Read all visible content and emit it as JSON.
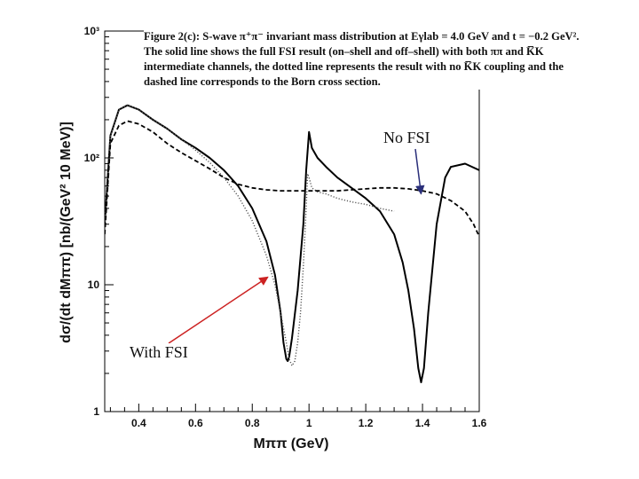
{
  "chart_data": {
    "type": "line",
    "caption": "Figure 2(c): S-wave π⁺π⁻ invariant mass distribution at Eγlab = 4.0 GeV and t = −0.2 GeV². The solid line shows the full FSI result (on–shell and off–shell) with both ππ and K̅K intermediate channels, the dotted line represents the result with no K̅K coupling and the dashed line corresponds to the Born cross section.",
    "xlabel": "Mππ (GeV)",
    "ylabel": "dσ/(dt dMππ) [nb/(GeV² 10 MeV)]",
    "xlim": [
      0.28,
      1.6
    ],
    "ylim": [
      1,
      1000
    ],
    "yscale": "log",
    "x_ticks": [
      "0.4",
      "0.6",
      "0.8",
      "1",
      "1.2",
      "1.4",
      "1.6"
    ],
    "y_ticks": [
      {
        "value": 1,
        "label": "1"
      },
      {
        "value": 10,
        "label": "10"
      },
      {
        "value": 100,
        "label": "10²"
      },
      {
        "value": 1000,
        "label": "10³"
      }
    ],
    "grid": false,
    "annotations": [
      {
        "id": "nofsi",
        "text": "No FSI",
        "arrow_color": "#2a2f7a",
        "points_to": {
          "x": 1.395,
          "y": 52
        }
      },
      {
        "id": "withfsi",
        "text": "With FSI",
        "arrow_color": "#cc2222",
        "points_to": {
          "x": 0.855,
          "y": 11.5
        }
      }
    ],
    "series": [
      {
        "style": "solid",
        "color": "#000000",
        "x": [
          0.28,
          0.3,
          0.33,
          0.36,
          0.4,
          0.45,
          0.5,
          0.55,
          0.6,
          0.65,
          0.7,
          0.75,
          0.8,
          0.85,
          0.88,
          0.9,
          0.91,
          0.92,
          0.925,
          0.93,
          0.94,
          0.96,
          0.98,
          0.99,
          1.0,
          1.01,
          1.03,
          1.06,
          1.1,
          1.15,
          1.2,
          1.25,
          1.3,
          1.33,
          1.35,
          1.37,
          1.385,
          1.395,
          1.405,
          1.42,
          1.45,
          1.48,
          1.5,
          1.55,
          1.6
        ],
        "y": [
          30,
          150,
          240,
          260,
          240,
          200,
          170,
          140,
          120,
          100,
          80,
          60,
          40,
          22,
          12,
          6,
          3.5,
          2.6,
          2.5,
          2.7,
          3.8,
          9,
          30,
          80,
          160,
          120,
          100,
          85,
          70,
          58,
          48,
          38,
          25,
          15,
          9,
          4.5,
          2.2,
          1.7,
          2.2,
          6,
          30,
          70,
          85,
          90,
          80
        ]
      },
      {
        "style": "dotted",
        "color": "#555555",
        "x": [
          0.28,
          0.3,
          0.33,
          0.36,
          0.4,
          0.45,
          0.5,
          0.55,
          0.6,
          0.65,
          0.7,
          0.75,
          0.8,
          0.85,
          0.88,
          0.9,
          0.92,
          0.93,
          0.94,
          0.95,
          0.96,
          0.97,
          0.98,
          0.99,
          0.995,
          1.0,
          1.01,
          1.03,
          1.06,
          1.1,
          1.15,
          1.2,
          1.25,
          1.3
        ],
        "y": [
          30,
          150,
          240,
          260,
          240,
          200,
          170,
          140,
          115,
          92,
          70,
          50,
          32,
          17,
          10,
          6,
          3.5,
          2.6,
          2.3,
          2.5,
          3.5,
          6,
          14,
          40,
          75,
          70,
          58,
          54,
          52,
          48,
          45,
          43,
          40,
          38
        ]
      },
      {
        "style": "dashed",
        "color": "#000000",
        "x": [
          0.28,
          0.3,
          0.33,
          0.36,
          0.4,
          0.45,
          0.5,
          0.55,
          0.6,
          0.65,
          0.7,
          0.75,
          0.8,
          0.85,
          0.9,
          0.95,
          1.0,
          1.05,
          1.1,
          1.15,
          1.2,
          1.25,
          1.3,
          1.35,
          1.4,
          1.45,
          1.5,
          1.55,
          1.58,
          1.6
        ],
        "y": [
          25,
          130,
          180,
          195,
          185,
          160,
          130,
          110,
          95,
          82,
          70,
          62,
          58,
          56,
          55,
          55,
          55,
          55,
          55,
          56,
          57,
          58,
          58,
          57,
          55,
          52,
          46,
          38,
          30,
          24
        ]
      }
    ]
  }
}
